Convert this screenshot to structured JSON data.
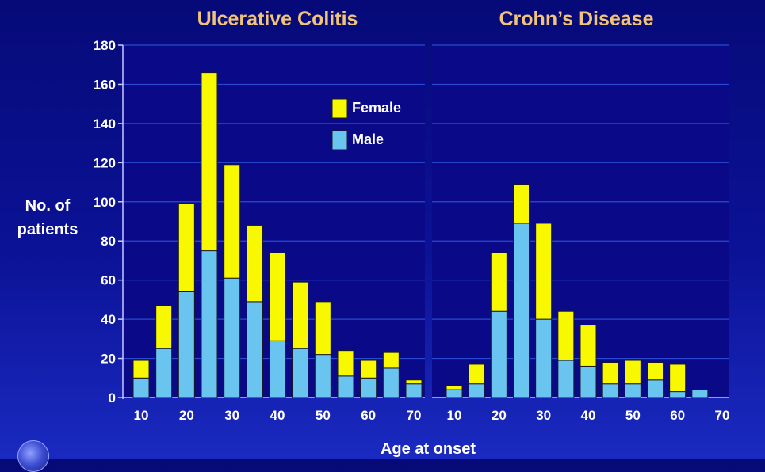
{
  "chart_data": [
    {
      "type": "bar",
      "stacked": true,
      "title": "Ulcerative Colitis",
      "x": [
        10,
        15,
        20,
        25,
        30,
        35,
        40,
        45,
        50,
        55,
        60,
        65,
        70
      ],
      "series": [
        {
          "name": "Male",
          "color": "#6ac4f0",
          "values": [
            10,
            25,
            54,
            75,
            61,
            49,
            29,
            25,
            22,
            11,
            10,
            15,
            7
          ]
        },
        {
          "name": "Female",
          "color": "#f8f800",
          "values": [
            9,
            22,
            45,
            91,
            58,
            39,
            45,
            34,
            27,
            13,
            9,
            8,
            2
          ]
        }
      ],
      "xticks": [
        "10",
        "20",
        "30",
        "40",
        "50",
        "60",
        "70"
      ],
      "yticks": [
        "0",
        "20",
        "40",
        "60",
        "80",
        "100",
        "120",
        "140",
        "160",
        "180"
      ],
      "ylim": [
        0,
        180
      ],
      "legend": [
        "Female",
        "Male"
      ],
      "legend_position": "top-right"
    },
    {
      "type": "bar",
      "stacked": true,
      "title": "Crohn’s Disease",
      "x": [
        10,
        15,
        20,
        25,
        30,
        35,
        40,
        45,
        50,
        55,
        60,
        65
      ],
      "series": [
        {
          "name": "Male",
          "color": "#6ac4f0",
          "values": [
            4,
            7,
            44,
            89,
            40,
            19,
            16,
            7,
            7,
            9,
            3,
            4
          ]
        },
        {
          "name": "Female",
          "color": "#f8f800",
          "values": [
            2,
            10,
            30,
            20,
            49,
            25,
            21,
            11,
            12,
            9,
            14,
            0
          ]
        }
      ],
      "xticks": [
        "10",
        "20",
        "30",
        "40",
        "50",
        "60",
        "70"
      ],
      "ylim": [
        0,
        180
      ]
    }
  ],
  "shared": {
    "ylabel_line1": "No. of",
    "ylabel_line2": "patients",
    "xlabel": "Age at onset"
  },
  "colors": {
    "grid": "#2a4ad6",
    "title": "#f2c477",
    "panel": "#0a0a88"
  }
}
